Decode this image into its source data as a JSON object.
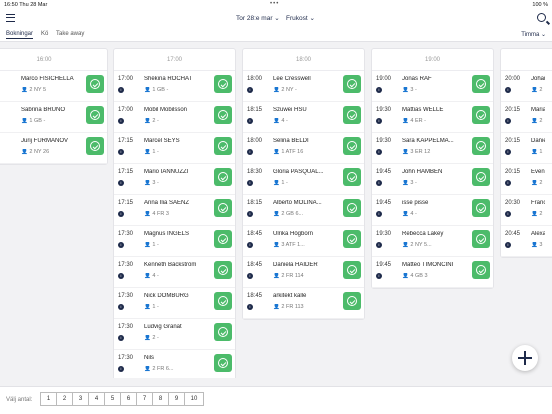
{
  "statusbar": {
    "time": "16:50 Thu 28 Mar",
    "battery": "100 %"
  },
  "header": {
    "date": "Tor 28:e mar",
    "meal": "Frukost"
  },
  "tabs": [
    "Bokningar",
    "Kö",
    "Take away"
  ],
  "view": "Timma",
  "columns": [
    {
      "hour": "16:00",
      "cards": [
        {
          "time": "",
          "name": "Marco FISICHELLA",
          "meta": "2  NY  5"
        },
        {
          "time": "",
          "name": "Sabrina BRUNO",
          "meta": "1  GB  -"
        },
        {
          "time": "",
          "name": "Jurij FURMANOV",
          "meta": "2  NY  26"
        }
      ]
    },
    {
      "hour": "17:00",
      "cards": [
        {
          "time": "17:00",
          "name": "Shékina ROCHAT",
          "meta": "1  GB  -"
        },
        {
          "time": "17:00",
          "name": "Mobil Mobilsson",
          "meta": "2  -"
        },
        {
          "time": "17:15",
          "name": "Marcel SEYS",
          "meta": "1  -"
        },
        {
          "time": "17:15",
          "name": "Mario IANNUZZI",
          "meta": "3  -"
        },
        {
          "time": "17:15",
          "name": "Anna Ilia SAENZ",
          "meta": "4  FR  3"
        },
        {
          "time": "17:30",
          "name": "Magnus INGELS",
          "meta": "1  -"
        },
        {
          "time": "17:30",
          "name": "Kenneth Bäckström",
          "meta": "4  -"
        },
        {
          "time": "17:30",
          "name": "Nick DOMBURG",
          "meta": "1  -"
        },
        {
          "time": "17:30",
          "name": "Ludvig Granat",
          "meta": "2  -"
        },
        {
          "time": "17:30",
          "name": "Nils",
          "meta": "2  FR  6..."
        }
      ]
    },
    {
      "hour": "18:00",
      "cards": [
        {
          "time": "18:00",
          "name": "Lee Cresswell",
          "meta": "2  NY  -"
        },
        {
          "time": "18:15",
          "name": "Szuwei HSU",
          "meta": "4  -"
        },
        {
          "time": "18:00",
          "name": "Selina BELDI",
          "meta": "1  ATF  16"
        },
        {
          "time": "18:30",
          "name": "Gloria PASQUAL...",
          "meta": "1  -"
        },
        {
          "time": "18:15",
          "name": "Alberto MOLINA...",
          "meta": "2  GB  6..."
        },
        {
          "time": "18:45",
          "name": "Ulrika Högborn",
          "meta": "3  ATF  1..."
        },
        {
          "time": "18:45",
          "name": "Daniela HAIDER",
          "meta": "2  FR  114"
        },
        {
          "time": "18:45",
          "name": "arkitekt kalle",
          "meta": "2  FR  113"
        }
      ]
    },
    {
      "hour": "19:00",
      "cards": [
        {
          "time": "19:00",
          "name": "Jonas RÄF",
          "meta": "3  -"
        },
        {
          "time": "19:30",
          "name": "Mattias WELLE",
          "meta": "4  ER  -"
        },
        {
          "time": "19:30",
          "name": "Sara KAPPELMA...",
          "meta": "3  ER  12"
        },
        {
          "time": "19:45",
          "name": "John HAMBEN",
          "meta": "3  -"
        },
        {
          "time": "19:45",
          "name": "isse pisse",
          "meta": "4  -"
        },
        {
          "time": "19:30",
          "name": "Rebecca Lakey",
          "meta": "2  NY  5..."
        },
        {
          "time": "19:45",
          "name": "Matteo TIMONCINI",
          "meta": "4  GB  3"
        }
      ]
    },
    {
      "hour": "",
      "cards": [
        {
          "time": "20:00",
          "name": "Johan",
          "meta": "2"
        },
        {
          "time": "20:15",
          "name": "Maria",
          "meta": "2"
        },
        {
          "time": "20:15",
          "name": "Danie",
          "meta": "1"
        },
        {
          "time": "20:15",
          "name": "Even",
          "meta": "2"
        },
        {
          "time": "20:30",
          "name": "Franc",
          "meta": "2"
        },
        {
          "time": "20:45",
          "name": "Alexa",
          "meta": "3"
        }
      ]
    }
  ],
  "footer": {
    "label": "Välj antal:",
    "pages": [
      "1",
      "2",
      "3",
      "4",
      "5",
      "6",
      "7",
      "8",
      "9",
      "10"
    ]
  }
}
